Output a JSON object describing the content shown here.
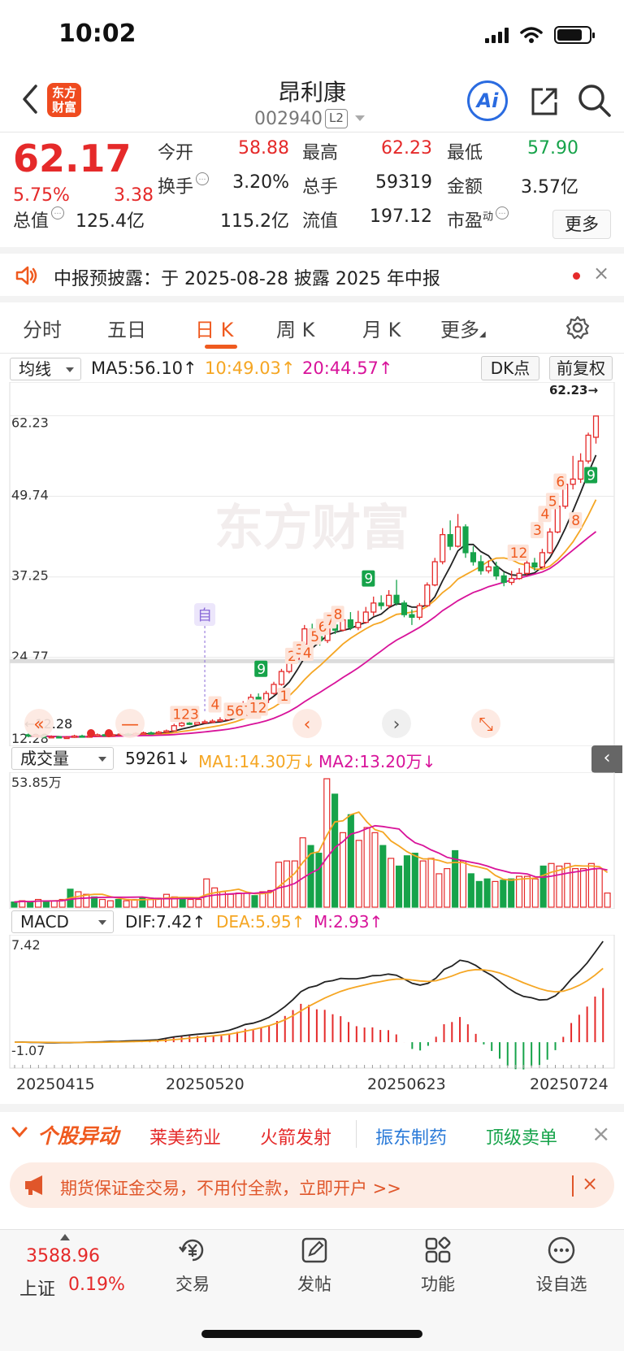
{
  "status": {
    "time": "10:02"
  },
  "header": {
    "brand_logo": "东方\n财富",
    "name": "昂利康",
    "code": "002940",
    "l2": "L2",
    "ai_label": "Ai"
  },
  "quote": {
    "price": "62.17",
    "pct": "5.75%",
    "change": "3.38",
    "fields": [
      {
        "label": "今开",
        "value": "58.88",
        "color": "red"
      },
      {
        "label": "最高",
        "value": "62.23",
        "color": "red"
      },
      {
        "label": "最低",
        "value": "57.90",
        "color": "green"
      },
      {
        "label": "换手",
        "value": "3.20%",
        "color": "dark",
        "info": true
      },
      {
        "label": "总手",
        "value": "59319",
        "color": "dark"
      },
      {
        "label": "金额",
        "value": "3.57亿",
        "color": "dark"
      },
      {
        "label": "总值",
        "value": "125.4亿",
        "color": "dark",
        "info": true
      },
      {
        "label": "流值",
        "value": "115.2亿",
        "color": "dark"
      },
      {
        "label": "市盈",
        "label_sup": "动",
        "value": "197.12",
        "color": "dark",
        "info": true
      }
    ],
    "more": "更多"
  },
  "notice": {
    "text": "中报预披露：于 2025-08-28 披露 2025 年中报",
    "close": "×"
  },
  "tabs": [
    "分时",
    "五日",
    "日 K",
    "周 K",
    "月 K",
    "更多"
  ],
  "active_tab": "日 K",
  "ma_row": {
    "select": "均线",
    "ma5": "MA5:56.10↑",
    "ma10": "10:49.03↑",
    "ma20": "20:44.57↑",
    "dk": "DK点",
    "fq": "前复权"
  },
  "vol_row": {
    "select": "成交量",
    "vol": "59261↓",
    "ma1": "MA1:14.30万↓",
    "ma2": "MA2:13.20万↓"
  },
  "macd_row": {
    "select": "MACD",
    "dif": "DIF:7.42↑",
    "dea": "DEA:5.95↑",
    "m": "M:2.93↑"
  },
  "colors": {
    "up": "#e52a2a",
    "down": "#16a34a",
    "ma5": "#222222",
    "ma10": "#f5a623",
    "ma20": "#d8139a",
    "accent": "#ef5a1f"
  },
  "chart_data": [
    {
      "type": "candlestick",
      "title": "",
      "y_ticks": [
        62.23,
        49.74,
        37.25,
        24.77
      ],
      "y_bottom_label": "12.28",
      "ylim": [
        12.28,
        62.23
      ],
      "x_labels": [
        "20250415",
        "20250520",
        "20250623",
        "20250724"
      ],
      "candles": [
        [
          12.8,
          12.6,
          13.0,
          12.4
        ],
        [
          12.6,
          12.7,
          12.9,
          12.4
        ],
        [
          12.7,
          12.4,
          12.8,
          12.3
        ],
        [
          12.4,
          12.5,
          12.7,
          12.3
        ],
        [
          12.5,
          12.3,
          12.6,
          12.28
        ],
        [
          12.3,
          12.4,
          12.6,
          12.3
        ],
        [
          12.4,
          12.6,
          12.8,
          12.3
        ],
        [
          12.6,
          12.5,
          12.8,
          12.4
        ],
        [
          12.5,
          12.6,
          12.8,
          12.4
        ],
        [
          12.6,
          12.8,
          13.0,
          12.5
        ],
        [
          12.8,
          12.7,
          13.0,
          12.6
        ],
        [
          12.7,
          12.8,
          13.0,
          12.6
        ],
        [
          12.8,
          12.9,
          13.1,
          12.7
        ],
        [
          12.9,
          12.8,
          13.1,
          12.7
        ],
        [
          12.8,
          13.0,
          13.2,
          12.7
        ],
        [
          13.0,
          13.1,
          13.3,
          12.9
        ],
        [
          13.1,
          13.0,
          13.3,
          12.9
        ],
        [
          13.0,
          13.2,
          13.4,
          12.9
        ],
        [
          13.2,
          13.4,
          13.6,
          13.1
        ],
        [
          13.4,
          14.2,
          14.5,
          13.3
        ],
        [
          14.2,
          14.6,
          14.9,
          14.0
        ],
        [
          14.6,
          14.4,
          14.9,
          14.3
        ],
        [
          14.4,
          14.7,
          15.0,
          14.3
        ],
        [
          14.7,
          14.8,
          15.1,
          14.5
        ],
        [
          14.8,
          14.9,
          15.2,
          14.6
        ],
        [
          14.9,
          15.1,
          15.5,
          14.8
        ],
        [
          15.1,
          15.6,
          16.0,
          15.0
        ],
        [
          15.6,
          16.4,
          16.8,
          15.4
        ],
        [
          16.4,
          17.6,
          18.0,
          16.2
        ],
        [
          17.6,
          18.6,
          19.1,
          17.3
        ],
        [
          18.6,
          17.8,
          19.2,
          17.5
        ],
        [
          17.8,
          19.2,
          19.6,
          17.6
        ],
        [
          19.2,
          20.6,
          21.0,
          19.0
        ],
        [
          20.6,
          22.6,
          23.0,
          20.4
        ],
        [
          22.6,
          24.5,
          25.0,
          22.3
        ],
        [
          24.5,
          26.8,
          27.2,
          24.2
        ],
        [
          26.8,
          29.2,
          29.8,
          26.5
        ],
        [
          29.2,
          28.0,
          30.0,
          27.5
        ],
        [
          28.0,
          27.4,
          28.6,
          26.6
        ],
        [
          27.4,
          29.8,
          30.6,
          27.0
        ],
        [
          29.8,
          29.0,
          31.2,
          28.4
        ],
        [
          29.0,
          30.6,
          31.8,
          28.8
        ],
        [
          30.6,
          29.4,
          31.8,
          29.0
        ],
        [
          29.4,
          30.2,
          32.0,
          29.0
        ],
        [
          30.2,
          31.8,
          32.6,
          30.0
        ],
        [
          31.8,
          33.2,
          34.2,
          31.2
        ],
        [
          33.2,
          32.8,
          34.4,
          32.2
        ],
        [
          32.8,
          34.4,
          35.2,
          32.4
        ],
        [
          34.4,
          33.2,
          36.8,
          32.8
        ],
        [
          33.2,
          31.4,
          33.6,
          31.0
        ],
        [
          31.4,
          31.0,
          32.2,
          29.8
        ],
        [
          31.0,
          32.8,
          33.2,
          30.6
        ],
        [
          32.8,
          36.0,
          36.4,
          32.6
        ],
        [
          36.0,
          39.6,
          40.2,
          35.8
        ],
        [
          39.6,
          43.8,
          44.8,
          39.2
        ],
        [
          43.8,
          42.0,
          46.0,
          41.4
        ],
        [
          42.0,
          45.0,
          47.0,
          41.8
        ],
        [
          45.0,
          41.0,
          45.4,
          40.2
        ],
        [
          41.0,
          39.6,
          42.0,
          39.0
        ],
        [
          39.6,
          38.2,
          40.6,
          37.6
        ],
        [
          38.2,
          38.8,
          39.8,
          37.8
        ],
        [
          38.8,
          37.4,
          39.6,
          36.8
        ],
        [
          37.4,
          36.4,
          38.0,
          35.8
        ],
        [
          36.4,
          37.0,
          38.2,
          36.0
        ],
        [
          37.0,
          37.8,
          38.6,
          36.8
        ],
        [
          37.8,
          39.4,
          39.8,
          37.4
        ],
        [
          39.4,
          38.8,
          40.2,
          38.2
        ],
        [
          38.8,
          41.0,
          41.6,
          38.6
        ],
        [
          41.0,
          44.2,
          44.8,
          40.8
        ],
        [
          44.2,
          48.2,
          48.6,
          44.0
        ],
        [
          48.2,
          51.6,
          52.4,
          47.8
        ],
        [
          51.6,
          52.4,
          56.0,
          50.8
        ],
        [
          52.4,
          55.2,
          56.4,
          51.8
        ],
        [
          55.2,
          59.2,
          59.6,
          54.8
        ],
        [
          58.88,
          62.17,
          62.23,
          57.9
        ]
      ],
      "annotations": [
        "123",
        "4",
        "5678",
        "12",
        "9",
        "1",
        "2",
        "3",
        "4",
        "5",
        "6",
        "7",
        "8",
        "9",
        "12",
        "3",
        "4",
        "5",
        "6",
        "8",
        "9",
        "自"
      ],
      "price_tag": "62.23→",
      "low_tag": "←12.28",
      "watermark": "东方财富"
    },
    {
      "type": "bar",
      "title": "",
      "y_top_label": "53.85万",
      "volume_ratio": [
        0.04,
        0.05,
        0.04,
        0.06,
        0.05,
        0.05,
        0.06,
        0.14,
        0.12,
        0.1,
        0.08,
        0.06,
        0.05,
        0.06,
        0.05,
        0.06,
        0.07,
        0.06,
        0.07,
        0.1,
        0.08,
        0.07,
        0.06,
        0.06,
        0.22,
        0.15,
        0.12,
        0.1,
        0.11,
        0.11,
        0.09,
        0.12,
        0.13,
        0.35,
        0.36,
        0.36,
        0.54,
        0.48,
        0.42,
        1.0,
        0.88,
        0.58,
        0.72,
        0.52,
        0.62,
        0.58,
        0.48,
        0.38,
        0.32,
        0.4,
        0.42,
        0.36,
        0.38,
        0.26,
        0.3,
        0.44,
        0.36,
        0.26,
        0.2,
        0.22,
        0.2,
        0.21,
        0.22,
        0.24,
        0.24,
        0.22,
        0.32,
        0.34,
        0.32,
        0.34,
        0.3,
        0.3,
        0.34,
        0.3,
        0.11
      ]
    },
    {
      "type": "bar",
      "title": "",
      "y_top_label": "7.42",
      "y_bottom_label": "-1.07",
      "ylim": [
        -1.07,
        7.42
      ]
    }
  ],
  "yidong": {
    "title": "个股异动",
    "items": [
      {
        "label": "莱美药业",
        "color": "red"
      },
      {
        "label": "火箭发射",
        "color": "red"
      },
      {
        "label": "振东制药",
        "color": "blue"
      },
      {
        "label": "顶级卖单",
        "color": "green"
      }
    ],
    "close": "×"
  },
  "ad": {
    "text": "期货保证金交易，不用付全款，立即开户 >>",
    "close": "×"
  },
  "bottom": {
    "index_value": "3588.96",
    "index_name": "上证",
    "index_pct": "0.19%",
    "nav": [
      "交易",
      "发帖",
      "功能",
      "设自选"
    ]
  }
}
